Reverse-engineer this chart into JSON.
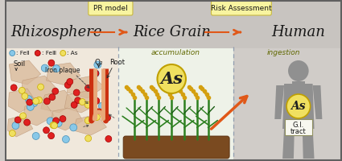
{
  "bg_color": "#d0ccc8",
  "header_bg": "#c8c4c0",
  "lower_left_bg": "#f0e8dc",
  "lower_mid_bg": "#eef2e8",
  "lower_right_bg": "#d0ccc8",
  "box_yellow": "#f8f4a0",
  "box_yellow_edge": "#c8b840",
  "title_label1": "PR model",
  "title_label2": "Risk Assessment",
  "section1": "Rhizosphere",
  "section2": "Rice Grain",
  "section3": "Human",
  "label_accum": "accumulation",
  "label_ingest": "ingestion",
  "label_soil": "Soil",
  "label_iron": "Iron plaque",
  "label_o2": "O₂",
  "label_root": "Root",
  "label_feII": ": FeⅡ",
  "label_feIII": ": FeⅢ",
  "label_as_legend": ": As",
  "as_symbol": "As",
  "gi_label": "G.I.",
  "tract_label": "tract",
  "arrow_color": "#e05818",
  "fe2_color": "#88c8e8",
  "fe3_color": "#e02020",
  "as_color": "#f0e060",
  "fe2_edge": "#4890b8",
  "fe3_edge": "#a00000",
  "as_edge": "#c8a800",
  "soil_blob_color": "#d8b898",
  "soil_blob_edge": "#b89070",
  "root_red": "#cc3010",
  "root_inner": "#e8a878",
  "human_color": "#909090",
  "as_circle_color": "#f0e060",
  "as_circle_edge": "#c0a000",
  "divider_color": "#8090a8",
  "text_dark": "#181818",
  "text_olive": "#606800",
  "gi_box_color": "#f8f8f0",
  "gi_box_edge": "#909060",
  "border_color": "#606060"
}
